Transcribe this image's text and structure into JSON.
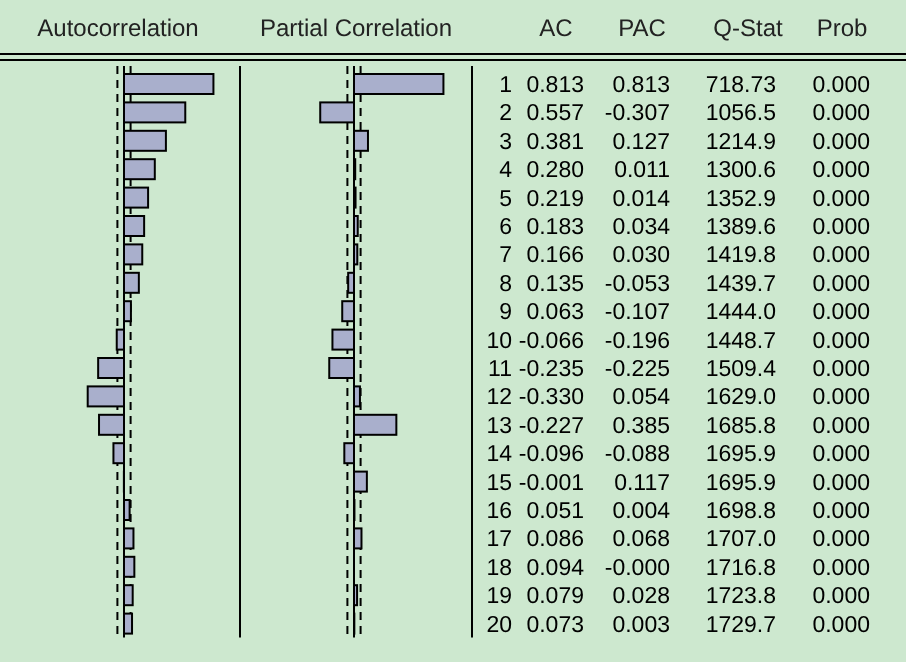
{
  "chart_data": [
    {
      "type": "bar",
      "orientation": "horizontal",
      "title": "Autocorrelation",
      "categories": [
        "1",
        "2",
        "3",
        "4",
        "5",
        "6",
        "7",
        "8",
        "9",
        "10",
        "11",
        "12",
        "13",
        "14",
        "15",
        "16",
        "17",
        "18",
        "19",
        "20"
      ],
      "series": [
        {
          "name": "AC",
          "color": "#a9afcc",
          "values": [
            0.813,
            0.557,
            0.381,
            0.28,
            0.219,
            0.183,
            0.166,
            0.135,
            0.063,
            -0.066,
            -0.235,
            -0.33,
            -0.227,
            -0.096,
            -0.001,
            0.051,
            0.086,
            0.094,
            0.079,
            0.073
          ],
          "value_labels": [
            "0.813",
            "0.557",
            "0.381",
            "0.280",
            "0.219",
            "0.183",
            "0.166",
            "0.135",
            "0.063",
            "-0.066",
            "-0.235",
            "-0.330",
            "-0.227",
            "-0.096",
            "-0.001",
            "0.051",
            "0.086",
            "0.094",
            "0.079",
            "0.073"
          ]
        }
      ],
      "ref_lines": [
        {
          "axis": "x",
          "value": -0.06,
          "line_style": "dashed"
        },
        {
          "axis": "x",
          "value": 0.06,
          "line_style": "dashed"
        }
      ]
    },
    {
      "type": "bar",
      "orientation": "horizontal",
      "title": "Partial Correlation",
      "categories": [
        null,
        null,
        null,
        null,
        null,
        null,
        null,
        null,
        null,
        null,
        null,
        null,
        null,
        null,
        null,
        null,
        null,
        null,
        null,
        null
      ],
      "series": [
        {
          "name": "PAC",
          "color": "#a9afcc",
          "values": [
            0.813,
            -0.307,
            0.127,
            0.011,
            0.014,
            0.034,
            0.03,
            -0.053,
            -0.107,
            -0.196,
            -0.225,
            0.054,
            0.385,
            -0.088,
            0.117,
            0.004,
            0.068,
            0,
            0.028,
            0.003
          ],
          "value_labels": [
            "0.813",
            "-0.307",
            "0.127",
            "0.011",
            "0.014",
            "0.034",
            "0.030",
            "-0.053",
            "-0.107",
            "-0.196",
            "-0.225",
            "0.054",
            "0.385",
            "-0.088",
            "0.117",
            "0.004",
            "0.068",
            "-0.000",
            "0.028",
            "0.003"
          ]
        }
      ],
      "ref_lines": [
        {
          "axis": "x",
          "value": -0.06,
          "line_style": "dashed"
        },
        {
          "axis": "x",
          "value": 0.06,
          "line_style": "dashed"
        }
      ]
    },
    {
      "type": "other",
      "title": "Q-Stat",
      "annotations": [
        "718.73",
        "1056.5",
        "1214.9",
        "1300.6",
        "1352.9",
        "1389.6",
        "1419.8",
        "1439.7",
        "1444.0",
        "1448.7",
        "1509.4",
        "1629.0",
        "1685.8",
        "1695.9",
        "1695.9",
        "1698.8",
        "1707.0",
        "1716.8",
        "1723.8",
        "1729.7"
      ]
    },
    {
      "type": "other",
      "title": "Prob",
      "annotations": [
        "0.000",
        "0.000",
        "0.000",
        "0.000",
        "0.000",
        "0.000",
        "0.000",
        "0.000",
        "0.000",
        "0.000",
        "0.000",
        "0.000",
        "0.000",
        "0.000",
        "0.000",
        "0.000",
        "0.000",
        "0.000",
        "0.000",
        "0.000"
      ]
    }
  ]
}
